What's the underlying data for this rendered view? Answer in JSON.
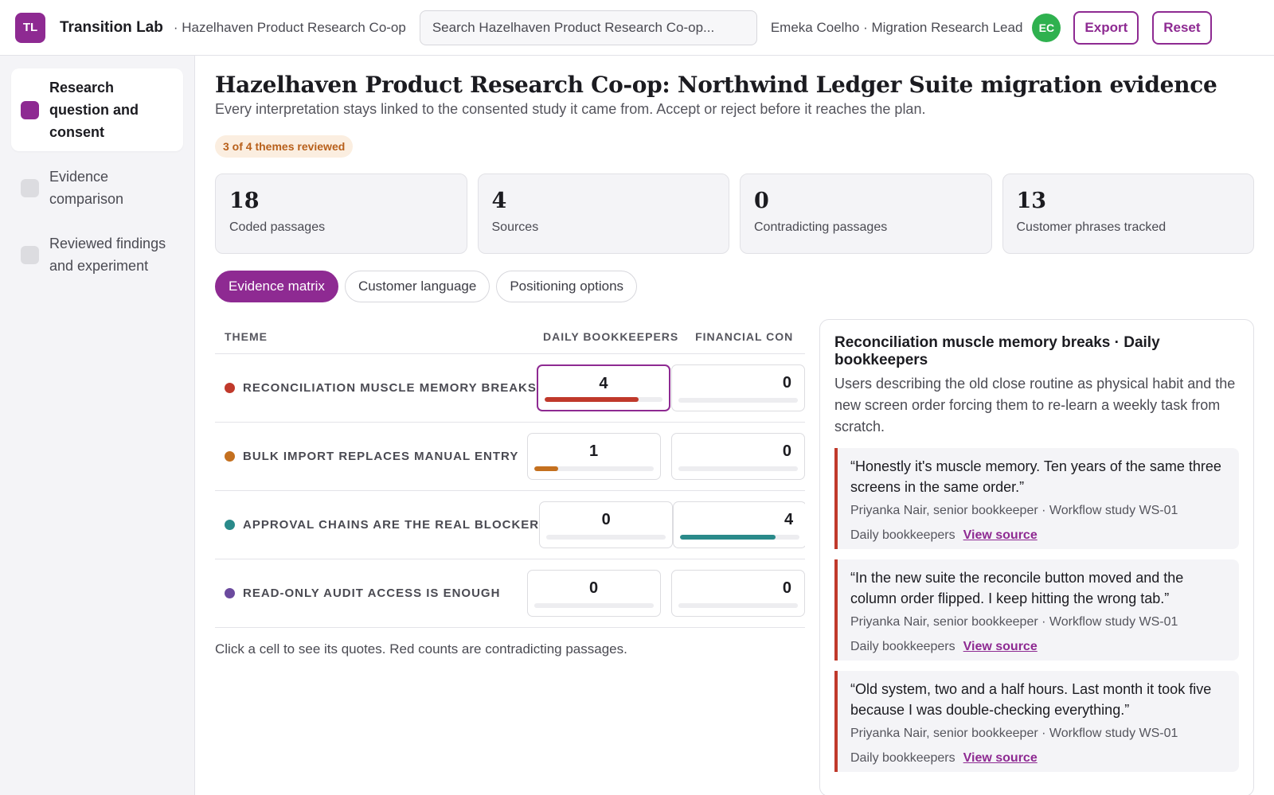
{
  "app": {
    "logo_initials": "TL",
    "title": "Transition Lab",
    "org_crumb": "· Hazelhaven Product Research Co-op"
  },
  "search": {
    "placeholder": "Search Hazelhaven Product Research Co-op..."
  },
  "user": {
    "label": "Emeka Coelho · Migration Research Lead",
    "initials": "EC",
    "avatar_color": "#2fb14f"
  },
  "toolbar": {
    "export_label": "Export",
    "reset_label": "Reset"
  },
  "sidebar": {
    "steps": [
      {
        "label": "Research question and consent",
        "active": true
      },
      {
        "label": "Evidence comparison",
        "active": false
      },
      {
        "label": "Reviewed findings and experiment",
        "active": false
      }
    ]
  },
  "page": {
    "title": "Hazelhaven Product Research Co-op: Northwind Ledger Suite migration evidence",
    "subtitle": "Every interpretation stays linked to the consented study it came from. Accept or reject before it reaches the plan.",
    "progress_badge": "3 of 4 themes reviewed"
  },
  "stats": [
    {
      "value": "18",
      "label": "Coded passages"
    },
    {
      "value": "4",
      "label": "Sources"
    },
    {
      "value": "0",
      "label": "Contradicting passages"
    },
    {
      "value": "13",
      "label": "Customer phrases tracked"
    }
  ],
  "tabs": [
    {
      "label": "Evidence matrix",
      "active": true
    },
    {
      "label": "Customer language",
      "active": false
    },
    {
      "label": "Positioning options",
      "active": false
    }
  ],
  "matrix": {
    "headers": {
      "theme": "THEME",
      "col1": "DAILY BOOKKEEPERS",
      "col2": "FINANCIAL CON"
    },
    "rows": [
      {
        "theme": "RECONCILIATION MUSCLE MEMORY BREAKS",
        "color": "#c0392b",
        "col1": 4,
        "col1_fill": 0.8,
        "col2": 0,
        "col2_fill": 0,
        "selected": true
      },
      {
        "theme": "BULK IMPORT REPLACES MANUAL ENTRY",
        "color": "#c4701f",
        "col1": 1,
        "col1_fill": 0.2,
        "col2": 0,
        "col2_fill": 0,
        "selected": false
      },
      {
        "theme": "APPROVAL CHAINS ARE THE REAL BLOCKER",
        "color": "#2a8a8a",
        "col1": 0,
        "col1_fill": 0,
        "col2": 4,
        "col2_fill": 0.8,
        "selected": false
      },
      {
        "theme": "READ-ONLY AUDIT ACCESS IS ENOUGH",
        "color": "#6b4a9e",
        "col1": 0,
        "col1_fill": 0,
        "col2": 0,
        "col2_fill": 0,
        "selected": false
      }
    ],
    "hint": "Click a cell to see its quotes. Red counts are contradicting passages."
  },
  "detail": {
    "title": "Reconciliation muscle memory breaks · Daily bookkeepers",
    "description": "Users describing the old close routine as physical habit and the new screen order forcing them to re-learn a weekly task from scratch.",
    "quotes": [
      {
        "text": "“Honestly it's muscle memory. Ten years of the same three screens in the same order.”",
        "meta": "Priyanka Nair, senior bookkeeper · Workflow study WS-01",
        "segment": "Daily bookkeepers",
        "link": "View source"
      },
      {
        "text": "“In the new suite the reconcile button moved and the column order flipped. I keep hitting the wrong tab.”",
        "meta": "Priyanka Nair, senior bookkeeper · Workflow study WS-01",
        "segment": "Daily bookkeepers",
        "link": "View source"
      },
      {
        "text": "“Old system, two and a half hours. Last month it took five because I was double-checking everything.”",
        "meta": "Priyanka Nair, senior bookkeeper · Workflow study WS-01",
        "segment": "Daily bookkeepers",
        "link": "View source"
      }
    ]
  },
  "colors": {
    "accent": "#8e2a92",
    "contradiction": "#c0392b"
  }
}
